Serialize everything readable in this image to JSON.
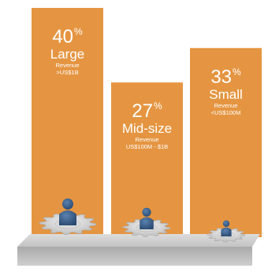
{
  "chart_data": {
    "type": "bar",
    "categories": [
      "Large",
      "Mid-size",
      "Small"
    ],
    "values": [
      40,
      27,
      33
    ],
    "value_suffix": "%",
    "descriptions": [
      [
        "Revenue",
        ">US$1B"
      ],
      [
        "Revenue",
        "US$100M - $1B"
      ],
      [
        "Revenue",
        "<US$100M"
      ]
    ],
    "ylim": [
      0,
      40
    ],
    "grid": false,
    "legend": "none",
    "bar_color": "#e59541",
    "base_color": "#b9b9b9",
    "gear_color": "#cfcfcf",
    "person_color": "#3a5f8a",
    "text_color": "#ffffff"
  }
}
